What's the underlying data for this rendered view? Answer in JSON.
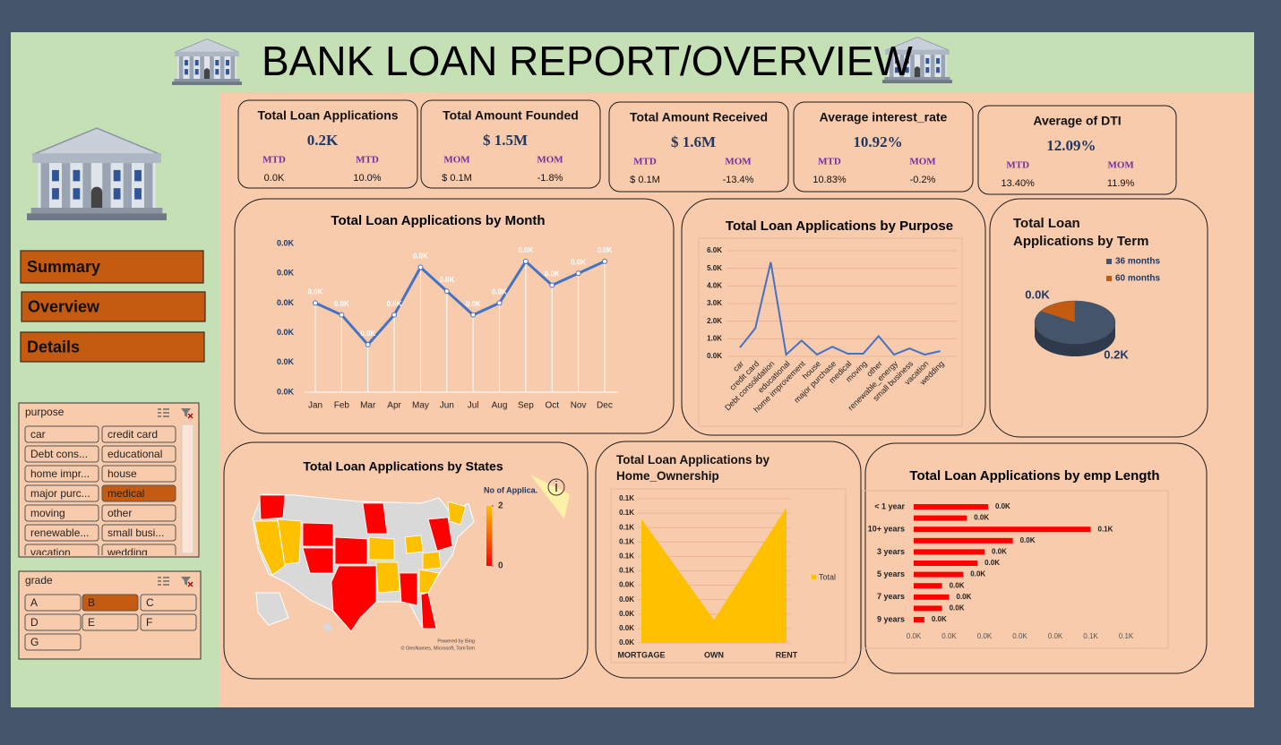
{
  "header": {
    "title": "BANK LOAN REPORT/OVERVIEW"
  },
  "nav": [
    "Summary",
    "Overview",
    "Details"
  ],
  "slicers": [
    {
      "title": "purpose",
      "items": [
        "car",
        "credit card",
        "Debt cons...",
        "educational",
        "home impr...",
        "house",
        "major purc...",
        "medical",
        "moving",
        "other",
        "renewable...",
        "small busi...",
        "vacation",
        "wedding"
      ],
      "selected": "medical"
    },
    {
      "title": "grade",
      "items": [
        "A",
        "B",
        "C",
        "D",
        "E",
        "F",
        "G"
      ],
      "selected": "B"
    }
  ],
  "kpis": [
    {
      "title": "Total Loan Applications",
      "value": "0.2K",
      "left_label": "MTD",
      "left_value": "0.0K",
      "right_label": "MTD",
      "right_value": "10.0%"
    },
    {
      "title": "Total Amount Founded",
      "value": "$ 1.5M",
      "left_label": "MOM",
      "left_value": "$ 0.1M",
      "right_label": "MOM",
      "right_value": "-1.8%"
    },
    {
      "title": "Total Amount Received",
      "value": "$ 1.6M",
      "left_label": "MTD",
      "left_value": "$ 0.1M",
      "right_label": "MOM",
      "right_value": "-13.4%"
    },
    {
      "title": "Average interest_rate",
      "value": "10.92%",
      "left_label": "MTD",
      "left_value": "10.83%",
      "right_label": "MOM",
      "right_value": "-0.2%"
    },
    {
      "title": "Average of DTI",
      "value": "12.09%",
      "left_label": "MTD",
      "left_value": "13.40%",
      "right_label": "MOM",
      "right_value": "11.9%"
    }
  ],
  "chart_data": [
    {
      "type": "line",
      "title": "Total Loan Applications by Month",
      "categories": [
        "Jan",
        "Feb",
        "Mar",
        "Apr",
        "May",
        "Jun",
        "Jul",
        "Aug",
        "Sep",
        "Oct",
        "Nov",
        "Dec"
      ],
      "values": [
        15,
        13,
        8,
        13,
        21,
        17,
        13,
        15,
        22,
        18,
        20,
        22
      ],
      "value_labels": [
        "0.0K",
        "0.0K",
        "0.0K",
        "0.0K",
        "0.0K",
        "0.0K",
        "0.0K",
        "0.0K",
        "0.0K",
        "0.0K",
        "0.0K",
        "0.0K"
      ],
      "color": "#4472c4",
      "ylim": [
        0,
        25
      ],
      "yticks": [
        {
          "value": 0,
          "label": "0.0K"
        },
        {
          "value": 5,
          "label": "0.0K"
        },
        {
          "value": 10,
          "label": "0.0K"
        },
        {
          "value": 15,
          "label": "0.0K"
        },
        {
          "value": 20,
          "label": "0.0K"
        },
        {
          "value": 25,
          "label": "0.0K"
        }
      ]
    },
    {
      "type": "line",
      "title": "Total Loan Applications by Purpose",
      "categories": [
        "car",
        "credit card",
        "Debt consolidation",
        "educational",
        "home improvement",
        "house",
        "major purchase",
        "medical",
        "moving",
        "other",
        "renewable_energy",
        "small business",
        "vacation",
        "wedding"
      ],
      "values": [
        500,
        1600,
        5350,
        100,
        900,
        100,
        550,
        150,
        150,
        1150,
        100,
        450,
        100,
        300
      ],
      "color": "#4472c4",
      "grid": true,
      "ylim": [
        0,
        6000
      ],
      "yticks": [
        {
          "value": 0,
          "label": "0.0K"
        },
        {
          "value": 1000,
          "label": "1.0K"
        },
        {
          "value": 2000,
          "label": "2.0K"
        },
        {
          "value": 3000,
          "label": "3.0K"
        },
        {
          "value": 4000,
          "label": "4.0K"
        },
        {
          "value": 5000,
          "label": "5.0K"
        },
        {
          "value": 6000,
          "label": "6.0K"
        }
      ]
    },
    {
      "type": "pie",
      "title": "Total Loan Applications by Term",
      "categories": [
        "36 months",
        "60 months"
      ],
      "values": [
        165,
        32
      ],
      "value_labels": [
        "0.2K",
        "0.0K"
      ],
      "colors": [
        "#44546a",
        "#c55a11"
      ]
    },
    {
      "type": "map",
      "title": "Total Loan Applications by States",
      "legend_title": "No of Applica.",
      "ticks": [
        0,
        2
      ],
      "colors": [
        "#ff0000",
        "#ffc000"
      ],
      "attribution": [
        "Powered by Bing",
        "© GeoNames, Microsoft, TomTom"
      ]
    },
    {
      "type": "area",
      "title": "Total Loan Applications by Home_Ownership",
      "categories": [
        "MORTGAGE",
        "OWN",
        "RENT"
      ],
      "series": [
        {
          "name": "Total",
          "color": "#ffc000",
          "values": [
            86,
            16,
            94
          ]
        }
      ],
      "grid": true,
      "ylim": [
        0,
        100
      ],
      "yticks": [
        {
          "value": 0,
          "label": "0.0K"
        },
        {
          "value": 10,
          "label": "0.0K"
        },
        {
          "value": 20,
          "label": "0.0K"
        },
        {
          "value": 30,
          "label": "0.0K"
        },
        {
          "value": 40,
          "label": "0.0K"
        },
        {
          "value": 50,
          "label": "0.1K"
        },
        {
          "value": 60,
          "label": "0.1K"
        },
        {
          "value": 70,
          "label": "0.1K"
        },
        {
          "value": 80,
          "label": "0.1K"
        },
        {
          "value": 90,
          "label": "0.1K"
        },
        {
          "value": 100,
          "label": "0.1K"
        }
      ]
    },
    {
      "type": "hbar",
      "title": "Total Loan Applications by emp Length",
      "categories": [
        "< 1 year",
        null,
        "10+ years",
        null,
        "3 years",
        null,
        "5 years",
        null,
        "7 years",
        null,
        "9 years"
      ],
      "values": [
        21,
        15,
        50,
        28,
        20,
        18,
        14,
        8,
        10,
        8,
        3
      ],
      "value_labels": [
        "0.0K",
        "0.0K",
        "0.1K",
        "0.0K",
        "0.0K",
        "0.0K",
        "0.0K",
        "0.0K",
        "0.0K",
        "0.0K",
        "0.0K"
      ],
      "color": "#ff0000",
      "xlim": [
        0,
        70
      ],
      "xticks": [
        {
          "value": 0,
          "label": "0.0K"
        },
        {
          "value": 10,
          "label": "0.0K"
        },
        {
          "value": 20,
          "label": "0.0K"
        },
        {
          "value": 30,
          "label": "0.0K"
        },
        {
          "value": 40,
          "label": "0.0K"
        },
        {
          "value": 50,
          "label": "0.1K"
        },
        {
          "value": 60,
          "label": "0.1K"
        }
      ]
    }
  ]
}
